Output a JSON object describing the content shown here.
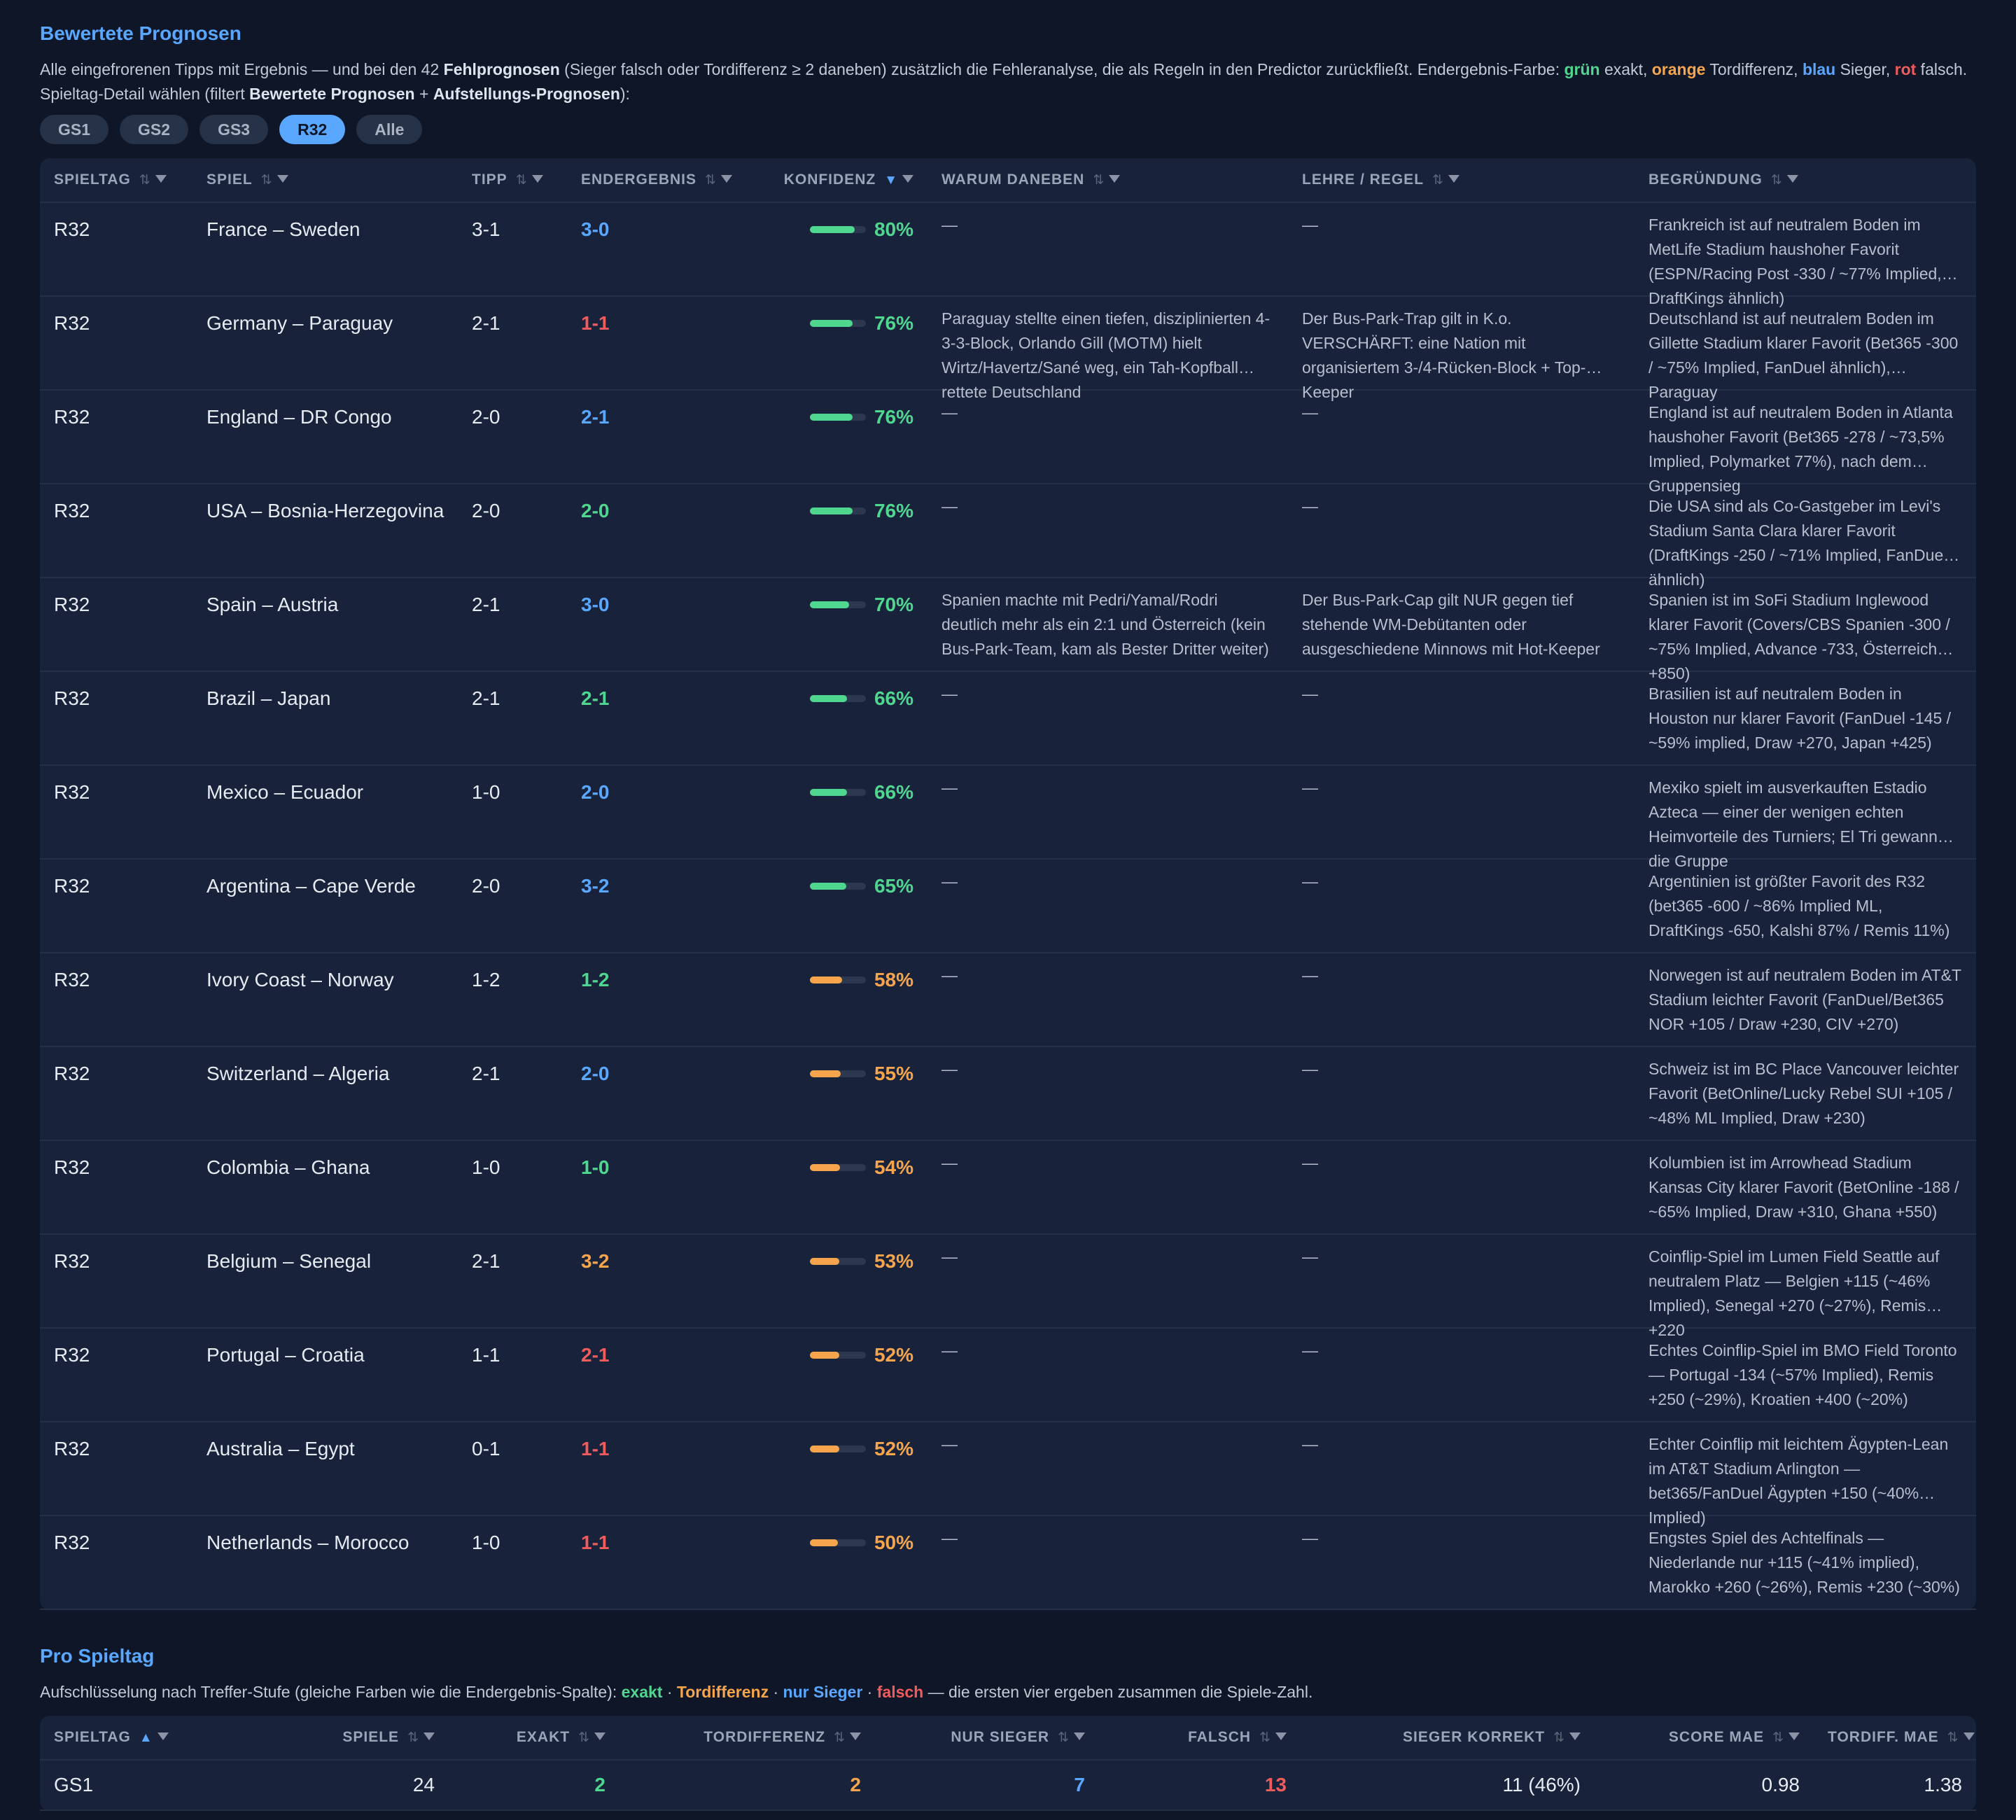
{
  "section1": {
    "title": "Bewertete Prognosen",
    "desc": {
      "p1": "Alle eingefrorenen Tipps mit Ergebnis — und bei den 42 ",
      "p1b": "Fehlprognosen",
      "p2": " (Sieger falsch oder Tordifferenz ≥ 2 daneben) zusätzlich die Fehleranalyse, die als Regeln in den Predictor zurückfließt. Endergebnis-Farbe: ",
      "green": "grün",
      "p3": " exakt, ",
      "orange": "orange",
      "p4": " Tordifferenz, ",
      "blue": "blau",
      "p5": " Sieger, ",
      "red": "rot",
      "p6": " falsch."
    },
    "filter": {
      "p1": "Spieltag-Detail wählen (filtert ",
      "b1": "Bewertete Prognosen",
      "p2": " + ",
      "b2": "Aufstellungs-Prognosen",
      "p3": "):"
    },
    "pills": [
      {
        "label": "GS1",
        "active": false
      },
      {
        "label": "GS2",
        "active": false
      },
      {
        "label": "GS3",
        "active": false
      },
      {
        "label": "R32",
        "active": true
      },
      {
        "label": "Alle",
        "active": false
      }
    ],
    "columns": [
      "SPIELTAG",
      "SPIEL",
      "TIPP",
      "ENDERGEBNIS",
      "KONFIDENZ",
      "WARUM DANEBEN",
      "LEHRE / REGEL",
      "BEGRÜNDUNG"
    ],
    "sorted_column": "KONFIDENZ",
    "sort_dir": "desc",
    "rows": [
      {
        "spieltag": "R32",
        "spiel": "France – Sweden",
        "tipp": "3-1",
        "ergebnis": "3-0",
        "ergebnis_color": "#5aa7ff",
        "konfidenz": 80,
        "warum": "—",
        "lehre": "—",
        "begruendung": "Frankreich ist auf neutralem Boden im MetLife Stadium haushoher Favorit (ESPN/Racing Post -330 / ~77% Implied, DraftKings ähnlich)"
      },
      {
        "spieltag": "R32",
        "spiel": "Germany – Paraguay",
        "tipp": "2-1",
        "ergebnis": "1-1",
        "ergebnis_color": "#f05c5c",
        "konfidenz": 76,
        "warum": "Paraguay stellte einen tiefen, disziplinierten 4-3-3-Block, Orlando Gill (MOTM) hielt Wirtz/Havertz/Sané weg, ein Tah-Kopfball rettete Deutschland",
        "lehre": "Der Bus-Park-Trap gilt in K.o. VERSCHÄRFT: eine Nation mit organisiertem 3-/4-Rücken-Block + Top-Keeper",
        "begruendung": "Deutschland ist auf neutralem Boden im Gillette Stadium klarer Favorit (Bet365 -300 / ~75% Implied, FanDuel ähnlich), Paraguay"
      },
      {
        "spieltag": "R32",
        "spiel": "England – DR Congo",
        "tipp": "2-0",
        "ergebnis": "2-1",
        "ergebnis_color": "#5aa7ff",
        "konfidenz": 76,
        "warum": "—",
        "lehre": "—",
        "begruendung": "England ist auf neutralem Boden in Atlanta haushoher Favorit (Bet365 -278 / ~73,5% Implied, Polymarket 77%), nach dem Gruppensieg"
      },
      {
        "spieltag": "R32",
        "spiel": "USA – Bosnia-Herzegovina",
        "tipp": "2-0",
        "ergebnis": "2-0",
        "ergebnis_color": "#4fd68f",
        "konfidenz": 76,
        "warum": "—",
        "lehre": "—",
        "begruendung": "Die USA sind als Co-Gastgeber im Levi's Stadium Santa Clara klarer Favorit (DraftKings -250 / ~71% Implied, FanDuel ähnlich)"
      },
      {
        "spieltag": "R32",
        "spiel": "Spain – Austria",
        "tipp": "2-1",
        "ergebnis": "3-0",
        "ergebnis_color": "#5aa7ff",
        "konfidenz": 70,
        "warum": "Spanien machte mit Pedri/Yamal/Rodri deutlich mehr als ein 2:1 und Österreich (kein Bus-Park-Team, kam als Bester Dritter weiter)",
        "lehre": "Der Bus-Park-Cap gilt NUR gegen tief stehende WM-Debütanten oder ausgeschiedene Minnows mit Hot-Keeper",
        "begruendung": "Spanien ist im SoFi Stadium Inglewood klarer Favorit (Covers/CBS Spanien -300 / ~75% Implied, Advance -733, Österreich +850)"
      },
      {
        "spieltag": "R32",
        "spiel": "Brazil – Japan",
        "tipp": "2-1",
        "ergebnis": "2-1",
        "ergebnis_color": "#4fd68f",
        "konfidenz": 66,
        "warum": "—",
        "lehre": "—",
        "begruendung": "Brasilien ist auf neutralem Boden in Houston nur klarer Favorit (FanDuel -145 / ~59% implied, Draw +270, Japan +425)"
      },
      {
        "spieltag": "R32",
        "spiel": "Mexico – Ecuador",
        "tipp": "1-0",
        "ergebnis": "2-0",
        "ergebnis_color": "#5aa7ff",
        "konfidenz": 66,
        "warum": "—",
        "lehre": "—",
        "begruendung": "Mexiko spielt im ausverkauften Estadio Azteca — einer der wenigen echten Heimvorteile des Turniers; El Tri gewann die Gruppe"
      },
      {
        "spieltag": "R32",
        "spiel": "Argentina – Cape Verde",
        "tipp": "2-0",
        "ergebnis": "3-2",
        "ergebnis_color": "#5aa7ff",
        "konfidenz": 65,
        "warum": "—",
        "lehre": "—",
        "begruendung": "Argentinien ist größter Favorit des R32 (bet365 -600 / ~86% Implied ML, DraftKings -650, Kalshi 87% / Remis 11%)"
      },
      {
        "spieltag": "R32",
        "spiel": "Ivory Coast – Norway",
        "tipp": "1-2",
        "ergebnis": "1-2",
        "ergebnis_color": "#4fd68f",
        "konfidenz": 58,
        "warum": "—",
        "lehre": "—",
        "begruendung": "Norwegen ist auf neutralem Boden im AT&T Stadium leichter Favorit (FanDuel/Bet365 NOR +105 / Draw +230, CIV +270)"
      },
      {
        "spieltag": "R32",
        "spiel": "Switzerland – Algeria",
        "tipp": "2-1",
        "ergebnis": "2-0",
        "ergebnis_color": "#5aa7ff",
        "konfidenz": 55,
        "warum": "—",
        "lehre": "—",
        "begruendung": "Schweiz ist im BC Place Vancouver leichter Favorit (BetOnline/Lucky Rebel SUI +105 / ~48% ML Implied, Draw +230)"
      },
      {
        "spieltag": "R32",
        "spiel": "Colombia – Ghana",
        "tipp": "1-0",
        "ergebnis": "1-0",
        "ergebnis_color": "#4fd68f",
        "konfidenz": 54,
        "warum": "—",
        "lehre": "—",
        "begruendung": "Kolumbien ist im Arrowhead Stadium Kansas City klarer Favorit (BetOnline -188 / ~65% Implied, Draw +310, Ghana +550)"
      },
      {
        "spieltag": "R32",
        "spiel": "Belgium – Senegal",
        "tipp": "2-1",
        "ergebnis": "3-2",
        "ergebnis_color": "#f6a54c",
        "konfidenz": 53,
        "warum": "—",
        "lehre": "—",
        "begruendung": "Coinflip-Spiel im Lumen Field Seattle auf neutralem Platz — Belgien +115 (~46% Implied), Senegal +270 (~27%), Remis +220"
      },
      {
        "spieltag": "R32",
        "spiel": "Portugal – Croatia",
        "tipp": "1-1",
        "ergebnis": "2-1",
        "ergebnis_color": "#f05c5c",
        "konfidenz": 52,
        "warum": "—",
        "lehre": "—",
        "begruendung": "Echtes Coinflip-Spiel im BMO Field Toronto — Portugal -134 (~57% Implied), Remis +250 (~29%), Kroatien +400 (~20%)"
      },
      {
        "spieltag": "R32",
        "spiel": "Australia – Egypt",
        "tipp": "0-1",
        "ergebnis": "1-1",
        "ergebnis_color": "#f05c5c",
        "konfidenz": 52,
        "warum": "—",
        "lehre": "—",
        "begruendung": "Echter Coinflip mit leichtem Ägypten-Lean im AT&T Stadium Arlington — bet365/FanDuel Ägypten +150 (~40% Implied)"
      },
      {
        "spieltag": "R32",
        "spiel": "Netherlands – Morocco",
        "tipp": "1-0",
        "ergebnis": "1-1",
        "ergebnis_color": "#f05c5c",
        "konfidenz": 50,
        "warum": "—",
        "lehre": "—",
        "begruendung": "Engstes Spiel des Achtelfinals — Niederlande nur +115 (~41% implied), Marokko +260 (~26%), Remis +230 (~30%)"
      }
    ]
  },
  "section2": {
    "title": "Pro Spieltag",
    "desc": {
      "p1": "Aufschlüsselung nach Treffer-Stufe (gleiche Farben wie die Endergebnis-Spalte): ",
      "exakt": "exakt",
      "sep1": " · ",
      "tordiff": "Tordifferenz",
      "sep2": " · ",
      "sieger": "nur Sieger",
      "sep3": " · ",
      "falsch": "falsch",
      "p2": " — die ersten vier ergeben zusammen die Spiele-Zahl."
    },
    "columns": [
      "SPIELTAG",
      "SPIELE",
      "EXAKT",
      "TORDIFFERENZ",
      "NUR SIEGER",
      "FALSCH",
      "SIEGER KORREKT",
      "SCORE MAE",
      "TORDIFF. MAE"
    ],
    "sorted_column": "SPIELTAG",
    "rows": [
      {
        "spieltag": "GS1",
        "spiele": "24",
        "exakt": "2",
        "tordiff": "2",
        "sieger": "7",
        "falsch": "13",
        "korrekt": "11 (46%)",
        "score_mae": "0.98",
        "tordiff_mae": "1.38"
      }
    ]
  },
  "colors": {
    "accent": "#5aa7ff",
    "green": "#4fd68f",
    "orange": "#f6a54c",
    "red": "#f05c5c",
    "bg": "#0f1627",
    "card": "#18223a"
  }
}
